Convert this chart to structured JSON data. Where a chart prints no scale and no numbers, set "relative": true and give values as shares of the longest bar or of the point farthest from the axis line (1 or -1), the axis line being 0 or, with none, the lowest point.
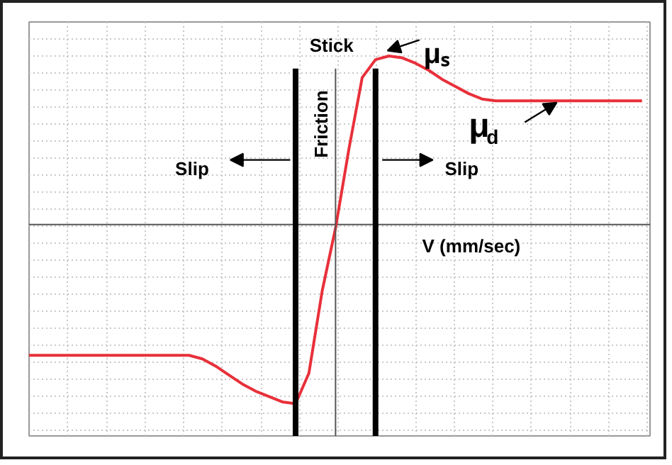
{
  "chart_data": {
    "type": "line",
    "relative": true,
    "xlabel": "V (mm/sec)",
    "ylabel": "Friction",
    "categories": [
      null,
      null,
      null,
      null,
      null,
      null,
      null,
      null,
      null,
      null,
      null,
      null,
      null,
      null,
      null,
      null,
      null,
      null,
      null,
      null,
      null,
      null,
      null,
      null,
      null,
      null,
      null,
      null,
      null,
      null,
      null,
      null,
      null,
      null,
      null,
      null,
      null,
      null,
      null,
      null,
      null,
      null,
      null,
      null,
      null,
      null,
      null
    ],
    "series": [
      {
        "color": "#e8303a",
        "values": [
          -0.73,
          -0.73,
          -0.73,
          -0.73,
          -0.73,
          -0.73,
          -0.73,
          -0.73,
          -0.73,
          -0.73,
          -0.73,
          -0.73,
          -0.73,
          -0.75,
          -0.79,
          -0.84,
          -0.89,
          -0.93,
          -0.96,
          -0.99,
          -1.0,
          -0.83,
          -0.37,
          -0.02,
          0.42,
          0.82,
          0.92,
          0.94,
          0.93,
          0.9,
          0.86,
          0.81,
          0.77,
          0.73,
          0.7,
          0.69,
          0.69,
          0.69,
          0.69,
          0.69,
          0.69,
          0.69,
          0.69,
          0.69,
          0.69,
          0.69,
          0.69
        ]
      }
    ],
    "ref_lines": [
      {
        "axis": "y",
        "value": 0,
        "color": "#555555"
      }
    ],
    "annotations": [
      "Stick",
      "μₛ",
      "μ$_{d}$",
      "Slip",
      "Slip"
    ],
    "grid": true,
    "line_style": "solid"
  }
}
